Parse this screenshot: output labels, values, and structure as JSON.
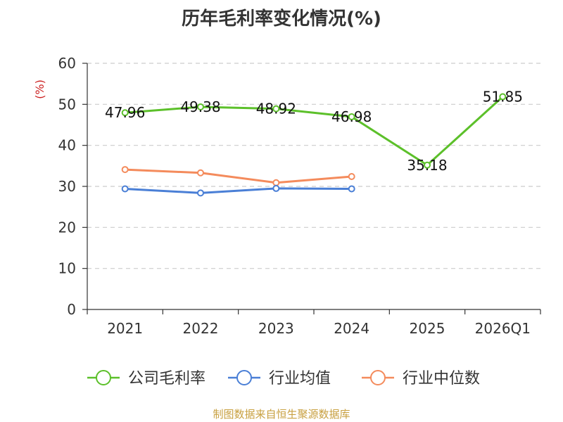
{
  "chart_data": {
    "type": "line",
    "title": "历年毛利率变化情况(%)",
    "ylabel": "(%)",
    "categories": [
      "2021",
      "2022",
      "2023",
      "2024",
      "2025",
      "2026Q1"
    ],
    "ylim": [
      0,
      60
    ],
    "yticks": [
      0,
      10,
      20,
      30,
      40,
      50,
      60
    ],
    "grid": true,
    "legend_position": "bottom",
    "series": [
      {
        "name": "公司毛利率",
        "color": "#5cc02a",
        "values": [
          47.96,
          49.38,
          48.92,
          46.98,
          35.18,
          51.85
        ],
        "labels": [
          "47.96",
          "49.38",
          "48.92",
          "46.98",
          "35.18",
          "51.85"
        ]
      },
      {
        "name": "行业均值",
        "color": "#4a7fd6",
        "values": [
          29.4,
          28.4,
          29.5,
          29.4,
          null,
          null
        ]
      },
      {
        "name": "行业中位数",
        "color": "#f48b5c",
        "values": [
          34.1,
          33.3,
          30.9,
          32.4,
          null,
          null
        ]
      }
    ]
  },
  "source": "制图数据来自恒生聚源数据库"
}
